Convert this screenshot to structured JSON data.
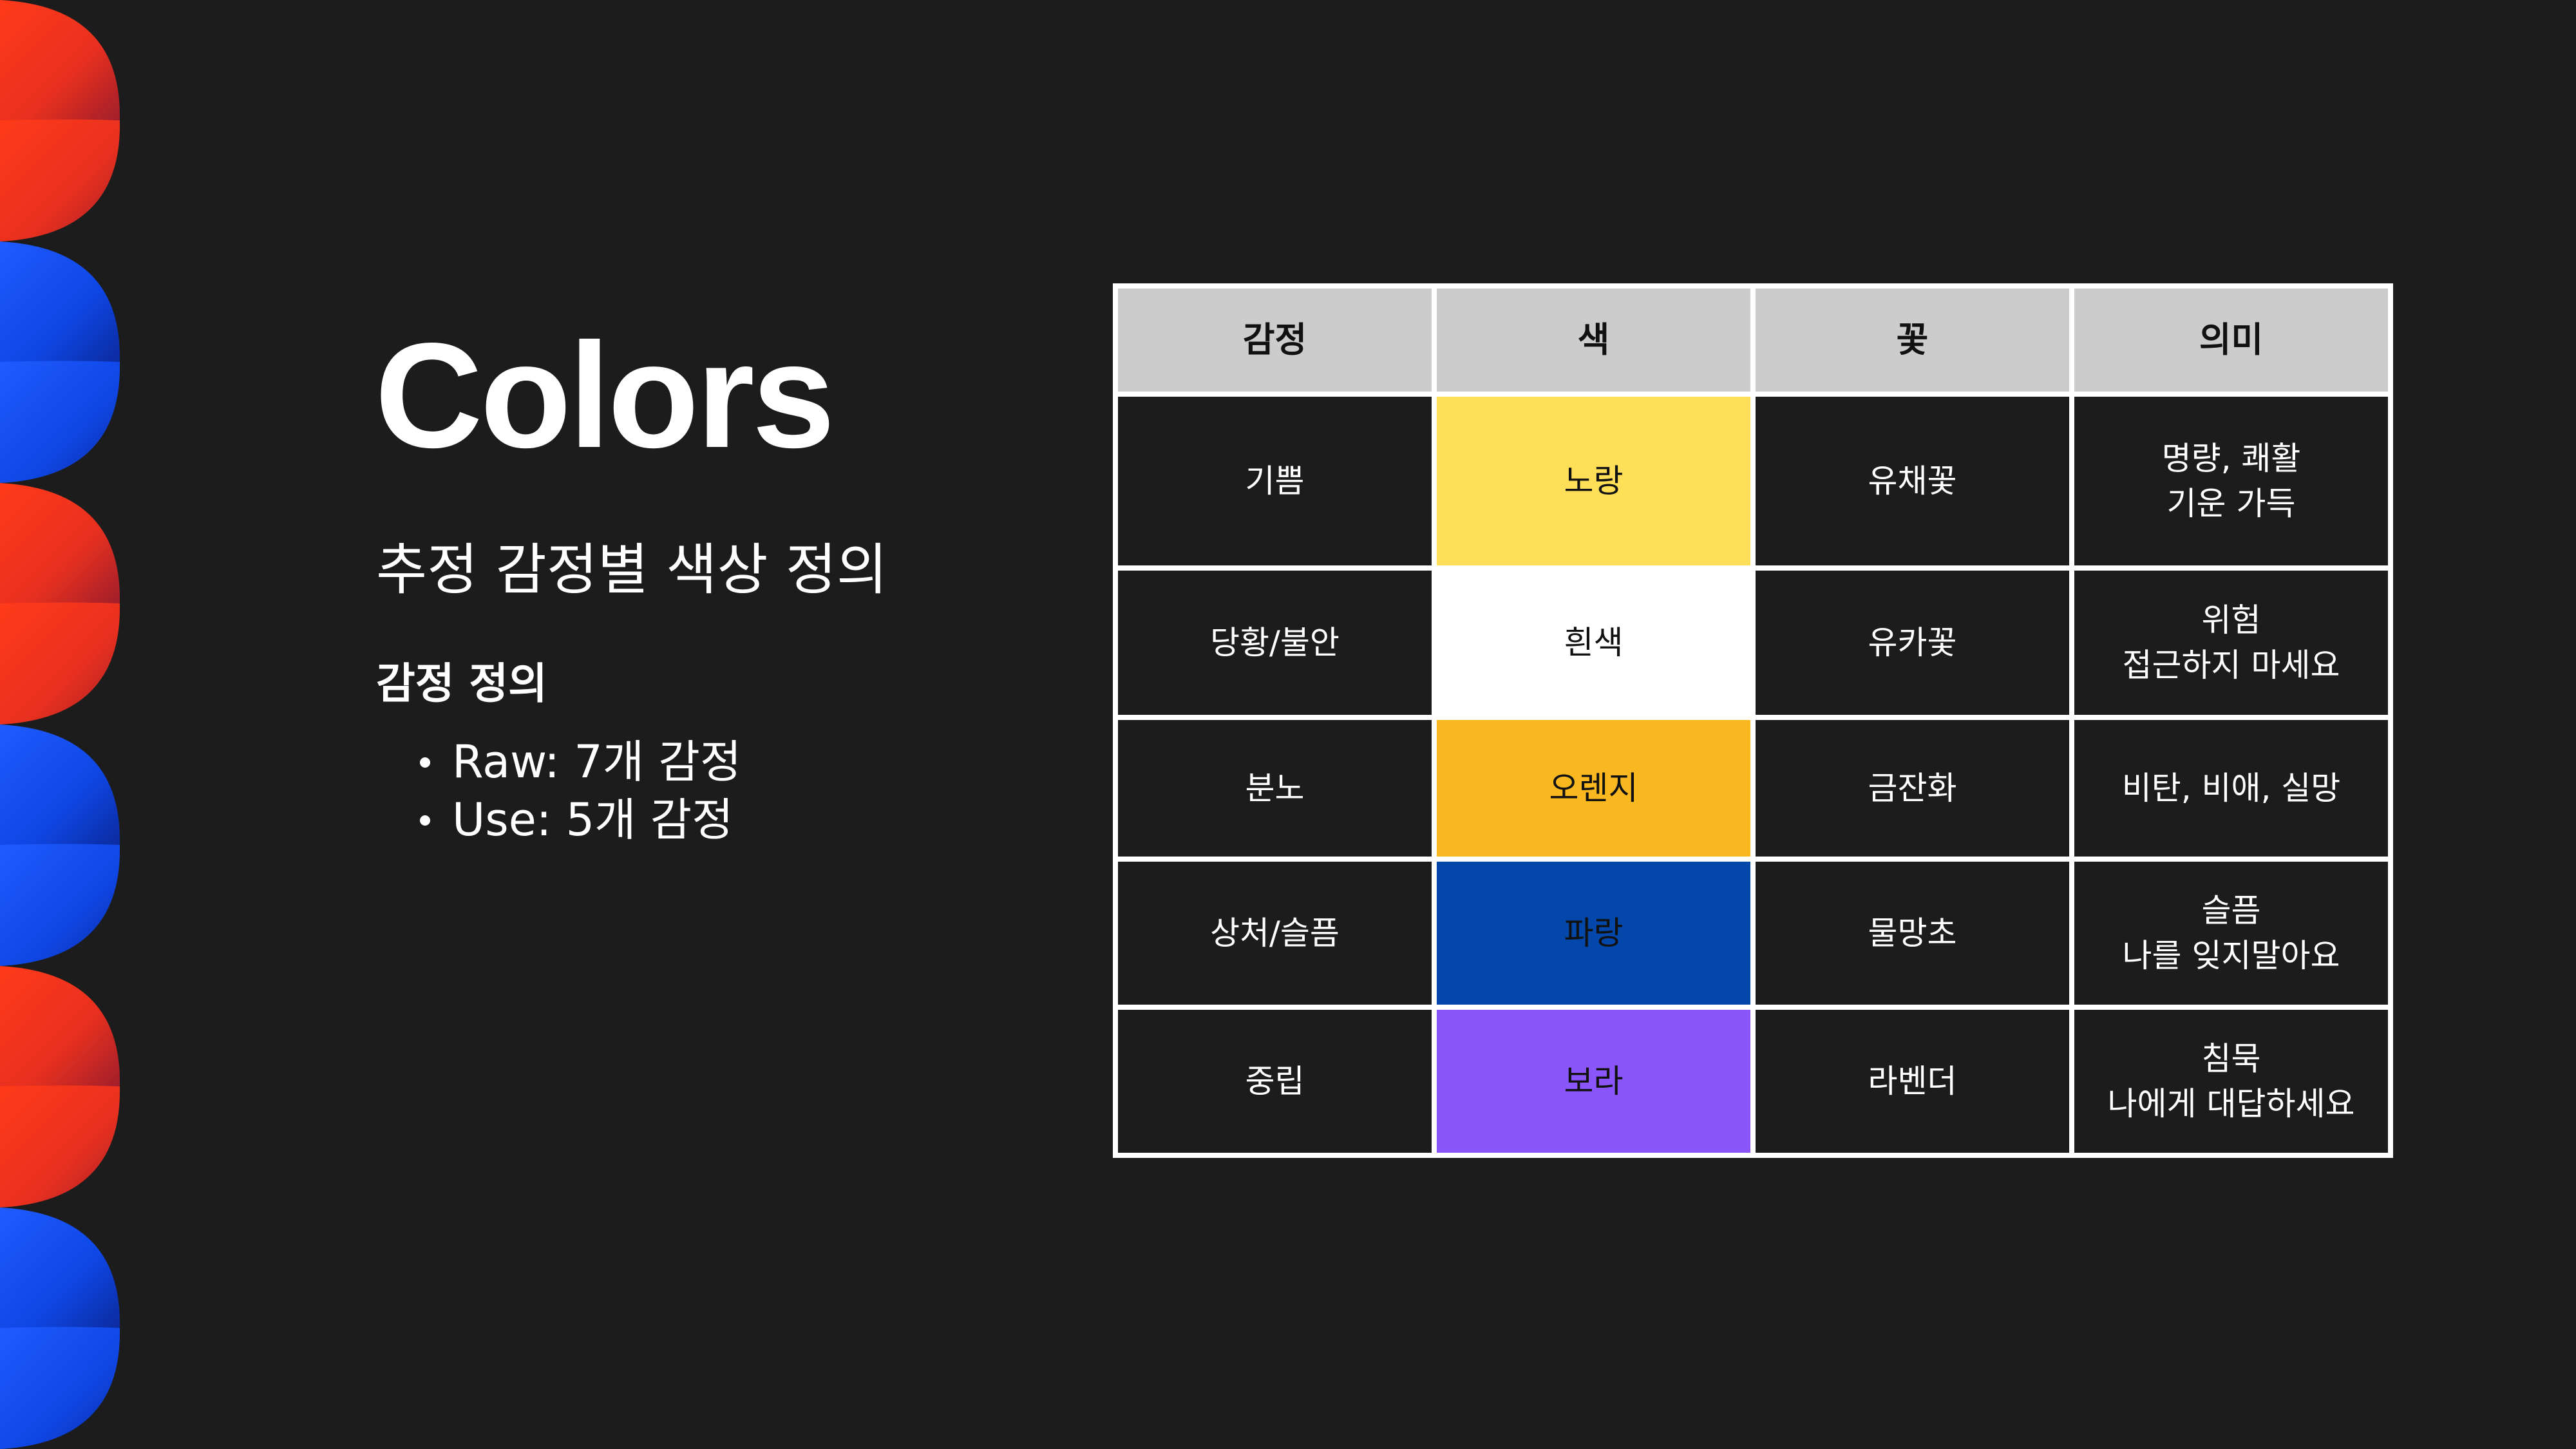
{
  "slide": {
    "title": "Colors",
    "subtitle": "추정 감정별 색상 정의",
    "section_heading": "감정 정의",
    "bullets": [
      "Raw: 7개 감정",
      "Use: 5개 감정"
    ]
  },
  "table": {
    "headers": [
      "감정",
      "색",
      "꽃",
      "의미"
    ],
    "rows": [
      {
        "emotion": "기쁨",
        "color": {
          "label": "노랑",
          "hex": "#ffdf57"
        },
        "flower": "유채꽃",
        "meaning": [
          "명량, 쾌활",
          "기운 가득"
        ]
      },
      {
        "emotion": "당황/불안",
        "color": {
          "label": "흰색",
          "hex": "#ffffff"
        },
        "flower": "유카꽃",
        "meaning": [
          "위험",
          "접근하지 마세요"
        ]
      },
      {
        "emotion": "분노",
        "color": {
          "label": "오렌지",
          "hex": "#f9b820"
        },
        "flower": "금잔화",
        "meaning": [
          "비탄, 비애, 실망"
        ]
      },
      {
        "emotion": "상처/슬픔",
        "color": {
          "label": "파랑",
          "hex": "#0447aa"
        },
        "flower": "물망초",
        "meaning": [
          "슬픔",
          "나를 잊지말아요"
        ]
      },
      {
        "emotion": "중립",
        "color": {
          "label": "보라",
          "hex": "#8b55fc"
        },
        "flower": "라벤더",
        "meaning": [
          "침묵",
          "나에게 대답하세요"
        ]
      }
    ]
  },
  "theme": {
    "background": "#1c1c1d",
    "header_background": "#cbcccb",
    "decor_red": "#f0321e",
    "decor_blue": "#0f4ef5"
  }
}
